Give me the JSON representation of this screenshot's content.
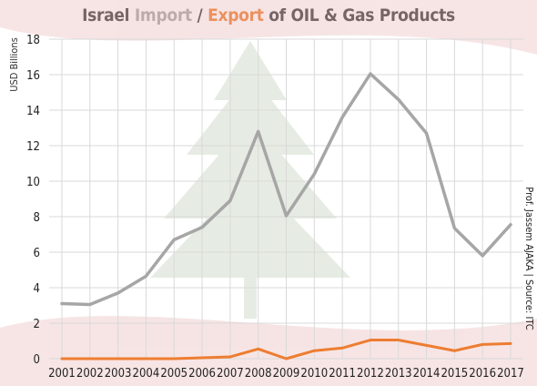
{
  "title_parts": {
    "p1": "Israel ",
    "p2": "Import",
    "p3": " / ",
    "p4": "Export",
    "p5": " of OIL & Gas Products"
  },
  "colors": {
    "title_dark": "#3b3b3b",
    "import": "#a6a6a6",
    "export": "#ed7d31",
    "grid": "#d9d9d9",
    "flag_red": "#e8b4b4",
    "cedar_green": "#b9cbb0"
  },
  "credit": "Prof. Jassem AJAKA | Source: ITC",
  "chart_data": {
    "type": "line",
    "title": "Israel Import / Export of OIL & Gas Products",
    "ylabel": "USD Billions",
    "xlabel": "",
    "x": [
      "2001",
      "2002",
      "2003",
      "2004",
      "2005",
      "2006",
      "2007",
      "2008",
      "2009",
      "2010",
      "2011",
      "2012",
      "2013",
      "2014",
      "2015",
      "2016",
      "2017"
    ],
    "ylim": [
      0,
      18
    ],
    "yticks": [
      0,
      2,
      4,
      6,
      8,
      10,
      12,
      14,
      16,
      18
    ],
    "grid": true,
    "series": [
      {
        "name": "Import",
        "color": "#a6a6a6",
        "values": [
          3.1,
          3.05,
          3.7,
          4.65,
          6.7,
          7.4,
          8.9,
          12.8,
          8.05,
          10.4,
          13.6,
          16.05,
          14.6,
          12.7,
          7.35,
          5.8,
          7.55
        ]
      },
      {
        "name": "Export",
        "color": "#ed7d31",
        "values": [
          0.0,
          0.0,
          0.0,
          0.0,
          0.0,
          0.05,
          0.1,
          0.55,
          0.0,
          0.45,
          0.6,
          1.05,
          1.05,
          0.75,
          0.45,
          0.8,
          0.85
        ]
      }
    ]
  }
}
